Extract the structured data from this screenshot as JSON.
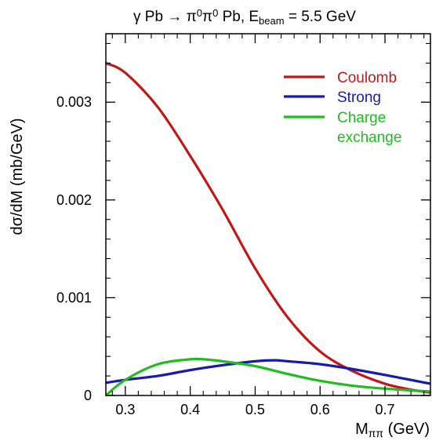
{
  "chart_data": {
    "type": "line",
    "title": {
      "prefix": "γ Pb → π",
      "sup1": "0",
      "mid": "π",
      "sup2": "0",
      "after": " Pb, E",
      "sub": "beam",
      "suffix": " = 5.5 GeV"
    },
    "xlabel": {
      "main": "M",
      "sub": "ππ",
      "unit": " (GeV)"
    },
    "ylabel": "dσ/dM (mb/GeV)",
    "xlim": [
      0.27,
      0.77
    ],
    "ylim": [
      0,
      0.0037
    ],
    "xticks": [
      {
        "value": 0.3,
        "label": "0.3"
      },
      {
        "value": 0.4,
        "label": "0.4"
      },
      {
        "value": 0.5,
        "label": "0.5"
      },
      {
        "value": 0.6,
        "label": "0.6"
      },
      {
        "value": 0.7,
        "label": "0.7"
      }
    ],
    "yticks": [
      {
        "value": 0,
        "label": "0"
      },
      {
        "value": 0.001,
        "label": "0.001"
      },
      {
        "value": 0.002,
        "label": "0.002"
      },
      {
        "value": 0.003,
        "label": "0.003"
      }
    ],
    "grid": false,
    "legend": {
      "position": "top-right"
    },
    "series": [
      {
        "name": "Coulomb",
        "color": "#c01818",
        "x": [
          0.27,
          0.3,
          0.35,
          0.4,
          0.45,
          0.5,
          0.55,
          0.6,
          0.65,
          0.7,
          0.74,
          0.77
        ],
        "y": [
          0.0034,
          0.0033,
          0.00295,
          0.00245,
          0.0019,
          0.0013,
          0.0008,
          0.00045,
          0.00025,
          0.00012,
          6e-05,
          3e-05
        ]
      },
      {
        "name": "Strong",
        "color": "#1a1aaa",
        "x": [
          0.27,
          0.3,
          0.35,
          0.4,
          0.45,
          0.5,
          0.53,
          0.55,
          0.6,
          0.65,
          0.7,
          0.77
        ],
        "y": [
          0.00013,
          0.00016,
          0.0002,
          0.00026,
          0.00031,
          0.00035,
          0.00036,
          0.00035,
          0.00032,
          0.00027,
          0.00021,
          0.00012
        ]
      },
      {
        "name_lines": [
          "Charge",
          "exchange"
        ],
        "color": "#22bb22",
        "x": [
          0.27,
          0.3,
          0.35,
          0.4,
          0.42,
          0.45,
          0.5,
          0.55,
          0.6,
          0.65,
          0.7,
          0.77
        ],
        "y": [
          0.0,
          0.00016,
          0.00032,
          0.00037,
          0.00037,
          0.00035,
          0.0003,
          0.00022,
          0.00015,
          0.0001,
          7e-05,
          4e-05
        ]
      }
    ]
  }
}
